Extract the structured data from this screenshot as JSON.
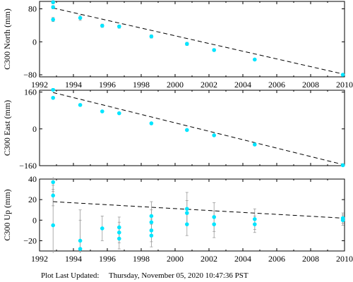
{
  "footer": {
    "label": "Plot Last Updated:",
    "value": "Thursday, November 05, 2020 10:47:36 PST"
  },
  "chart_data": [
    {
      "type": "scatter",
      "ylabel": "C300 North (mm)",
      "xlim": [
        1992,
        2010
      ],
      "ylim": [
        -85,
        98
      ],
      "x_ticks": [
        1992,
        1994,
        1996,
        1998,
        2000,
        2002,
        2004,
        2006,
        2008,
        2010
      ],
      "y_ticks": [
        -80,
        0,
        80
      ],
      "show_x_tick_labels": true,
      "point_color": "#00e5ff",
      "trend_line": {
        "x": [
          1992.8,
          2009.9
        ],
        "y": [
          82,
          -78
        ]
      },
      "points": [
        {
          "x": 1992.8,
          "y": 96,
          "err": 4
        },
        {
          "x": 1992.8,
          "y": 84,
          "err": 4
        },
        {
          "x": 1992.8,
          "y": 54,
          "err": 5
        },
        {
          "x": 1994.4,
          "y": 58,
          "err": 6
        },
        {
          "x": 1995.7,
          "y": 39,
          "err": 4
        },
        {
          "x": 1996.7,
          "y": 37,
          "err": 4
        },
        {
          "x": 1998.6,
          "y": 13,
          "err": 4
        },
        {
          "x": 2000.7,
          "y": -5,
          "err": 4
        },
        {
          "x": 2002.3,
          "y": -20,
          "err": 3
        },
        {
          "x": 2004.7,
          "y": -43,
          "err": 2
        },
        {
          "x": 2009.9,
          "y": -80,
          "err": 2
        }
      ]
    },
    {
      "type": "scatter",
      "ylabel": "C300 East (mm)",
      "xlim": [
        1992,
        2010
      ],
      "ylim": [
        -160,
        168
      ],
      "x_ticks": [
        1992,
        1994,
        1996,
        1998,
        2000,
        2002,
        2004,
        2006,
        2008,
        2010
      ],
      "y_ticks": [
        -160,
        0,
        160
      ],
      "show_x_tick_labels": false,
      "point_color": "#00e5ff",
      "trend_line": {
        "x": [
          1992.8,
          2009.9
        ],
        "y": [
          158,
          -155
        ]
      },
      "points": [
        {
          "x": 1992.8,
          "y": 170,
          "err": 5
        },
        {
          "x": 1992.8,
          "y": 135,
          "err": 5
        },
        {
          "x": 1994.4,
          "y": 104,
          "err": 5
        },
        {
          "x": 1995.7,
          "y": 76,
          "err": 4
        },
        {
          "x": 1996.7,
          "y": 68,
          "err": 4
        },
        {
          "x": 1998.6,
          "y": 24,
          "err": 4
        },
        {
          "x": 2000.7,
          "y": -5,
          "err": 4
        },
        {
          "x": 2002.3,
          "y": -28,
          "err": 3
        },
        {
          "x": 2004.7,
          "y": -68,
          "err": 3
        },
        {
          "x": 2009.9,
          "y": -158,
          "err": 2
        }
      ]
    },
    {
      "type": "scatter",
      "ylabel": "C300 Up (mm)",
      "xlim": [
        1992,
        2010
      ],
      "ylim": [
        -30,
        40
      ],
      "x_ticks": [
        1992,
        1994,
        1996,
        1998,
        2000,
        2002,
        2004,
        2006,
        2008,
        2010
      ],
      "y_ticks": [
        -20,
        0,
        20,
        40
      ],
      "show_x_tick_labels": true,
      "point_color": "#00e5ff",
      "trend_line": {
        "x": [
          1992.8,
          2009.9
        ],
        "y": [
          18,
          2
        ]
      },
      "points": [
        {
          "x": 1992.8,
          "y": 37,
          "err": 9
        },
        {
          "x": 1992.8,
          "y": 24,
          "err": 10
        },
        {
          "x": 1992.8,
          "y": -5,
          "err": 35
        },
        {
          "x": 1994.4,
          "y": -20,
          "err": 30
        },
        {
          "x": 1994.4,
          "y": -28,
          "err": 28
        },
        {
          "x": 1995.7,
          "y": -8,
          "err": 12
        },
        {
          "x": 1996.7,
          "y": -7,
          "err": 10
        },
        {
          "x": 1996.7,
          "y": -12,
          "err": 10
        },
        {
          "x": 1996.7,
          "y": -18,
          "err": 10
        },
        {
          "x": 1998.6,
          "y": 4,
          "err": 14
        },
        {
          "x": 1998.6,
          "y": -2,
          "err": 12
        },
        {
          "x": 1998.6,
          "y": -10,
          "err": 11
        },
        {
          "x": 1998.6,
          "y": -15,
          "err": 11
        },
        {
          "x": 2000.7,
          "y": 11,
          "err": 16
        },
        {
          "x": 2000.7,
          "y": 7,
          "err": 12
        },
        {
          "x": 2000.7,
          "y": -4,
          "err": 11
        },
        {
          "x": 2002.3,
          "y": 3,
          "err": 14
        },
        {
          "x": 2002.3,
          "y": -4,
          "err": 13
        },
        {
          "x": 2004.7,
          "y": 1,
          "err": 10
        },
        {
          "x": 2004.7,
          "y": -4,
          "err": 8
        },
        {
          "x": 2009.9,
          "y": 2,
          "err": 5
        },
        {
          "x": 2009.9,
          "y": 0,
          "err": 5
        }
      ]
    }
  ]
}
